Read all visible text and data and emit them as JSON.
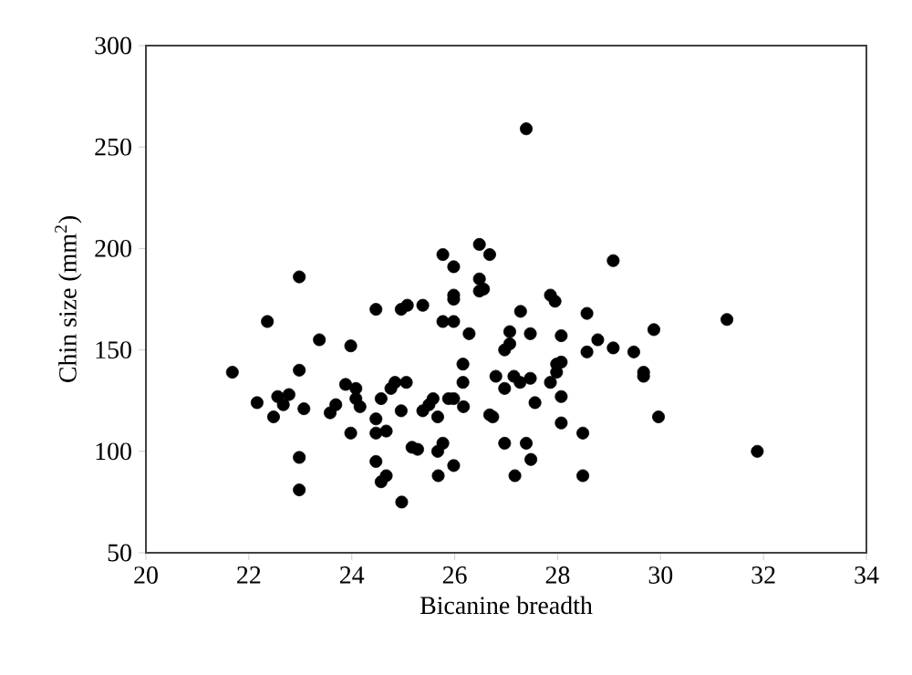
{
  "chart_data": {
    "type": "scatter",
    "xlabel": "Bicanine breadth",
    "ylabel": "Chin size (mm$^{2}$)",
    "xlim": [
      20,
      34
    ],
    "xticks": [
      20,
      22,
      24,
      26,
      28,
      30,
      32,
      34
    ],
    "ylim": [
      50,
      300
    ],
    "yticks": [
      50,
      100,
      150,
      200,
      250,
      300
    ],
    "marker": "circle",
    "grid": false,
    "series": [
      {
        "color": "#000000",
        "x": [
          27.86,
          27.95,
          27.28,
          28.57,
          31.29,
          27.07,
          27.47,
          28.07,
          29.87,
          28.78,
          26.97,
          27.07,
          28.57,
          29.08,
          29.48,
          28.07,
          27.98,
          27.98,
          27.86,
          29.67,
          29.67,
          26.8,
          27.15,
          26.97,
          27.27,
          27.47,
          28.07,
          27.56,
          26.74,
          29.96,
          28.07,
          28.49,
          26.97,
          27.39,
          27.48,
          31.88,
          27.17,
          28.49,
          27.39,
          29.08,
          22.98,
          26.48,
          26.48,
          26.56,
          25.98,
          25.98,
          24.47,
          24.96,
          25.08,
          25.38,
          22.36,
          25.77,
          25.98,
          23.37,
          26.28,
          23.98,
          21.68,
          22.98,
          26.16,
          23.88,
          24.08,
          24.84,
          25.06,
          24.76,
          26.16,
          22.16,
          22.56,
          22.78,
          22.67,
          22.48,
          23.07,
          23.58,
          23.69,
          24.08,
          24.16,
          24.57,
          24.47,
          24.96,
          25.38,
          25.5,
          25.58,
          25.88,
          25.98,
          25.67,
          26.17,
          26.68,
          23.98,
          24.47,
          24.67,
          22.98,
          25.17,
          25.28,
          25.77,
          25.67,
          24.47,
          24.67,
          24.57,
          25.68,
          25.98,
          22.98,
          24.97,
          25.77,
          26.48,
          26.68,
          25.98
        ],
        "values": [
          177,
          174,
          169,
          168,
          165,
          159,
          158,
          157,
          160,
          155,
          150,
          153,
          149,
          151,
          149,
          144,
          143,
          139,
          134,
          139,
          137,
          137,
          137,
          131,
          134,
          136,
          127,
          124,
          117,
          117,
          114,
          109,
          104,
          104,
          96,
          100,
          88,
          88,
          259,
          194,
          186,
          185,
          179,
          180,
          177,
          175,
          170,
          170,
          172,
          172,
          164,
          164,
          164,
          155,
          158,
          152,
          139,
          140,
          143,
          133,
          131,
          134,
          134,
          131,
          134,
          124,
          127,
          128,
          123,
          117,
          121,
          119,
          123,
          126,
          122,
          126,
          116,
          120,
          120,
          123,
          126,
          126,
          126,
          117,
          122,
          118,
          109,
          109,
          110,
          97,
          102,
          101,
          104,
          100,
          95,
          88,
          85,
          88,
          93,
          81,
          75,
          197,
          202,
          197,
          191
        ]
      }
    ]
  }
}
